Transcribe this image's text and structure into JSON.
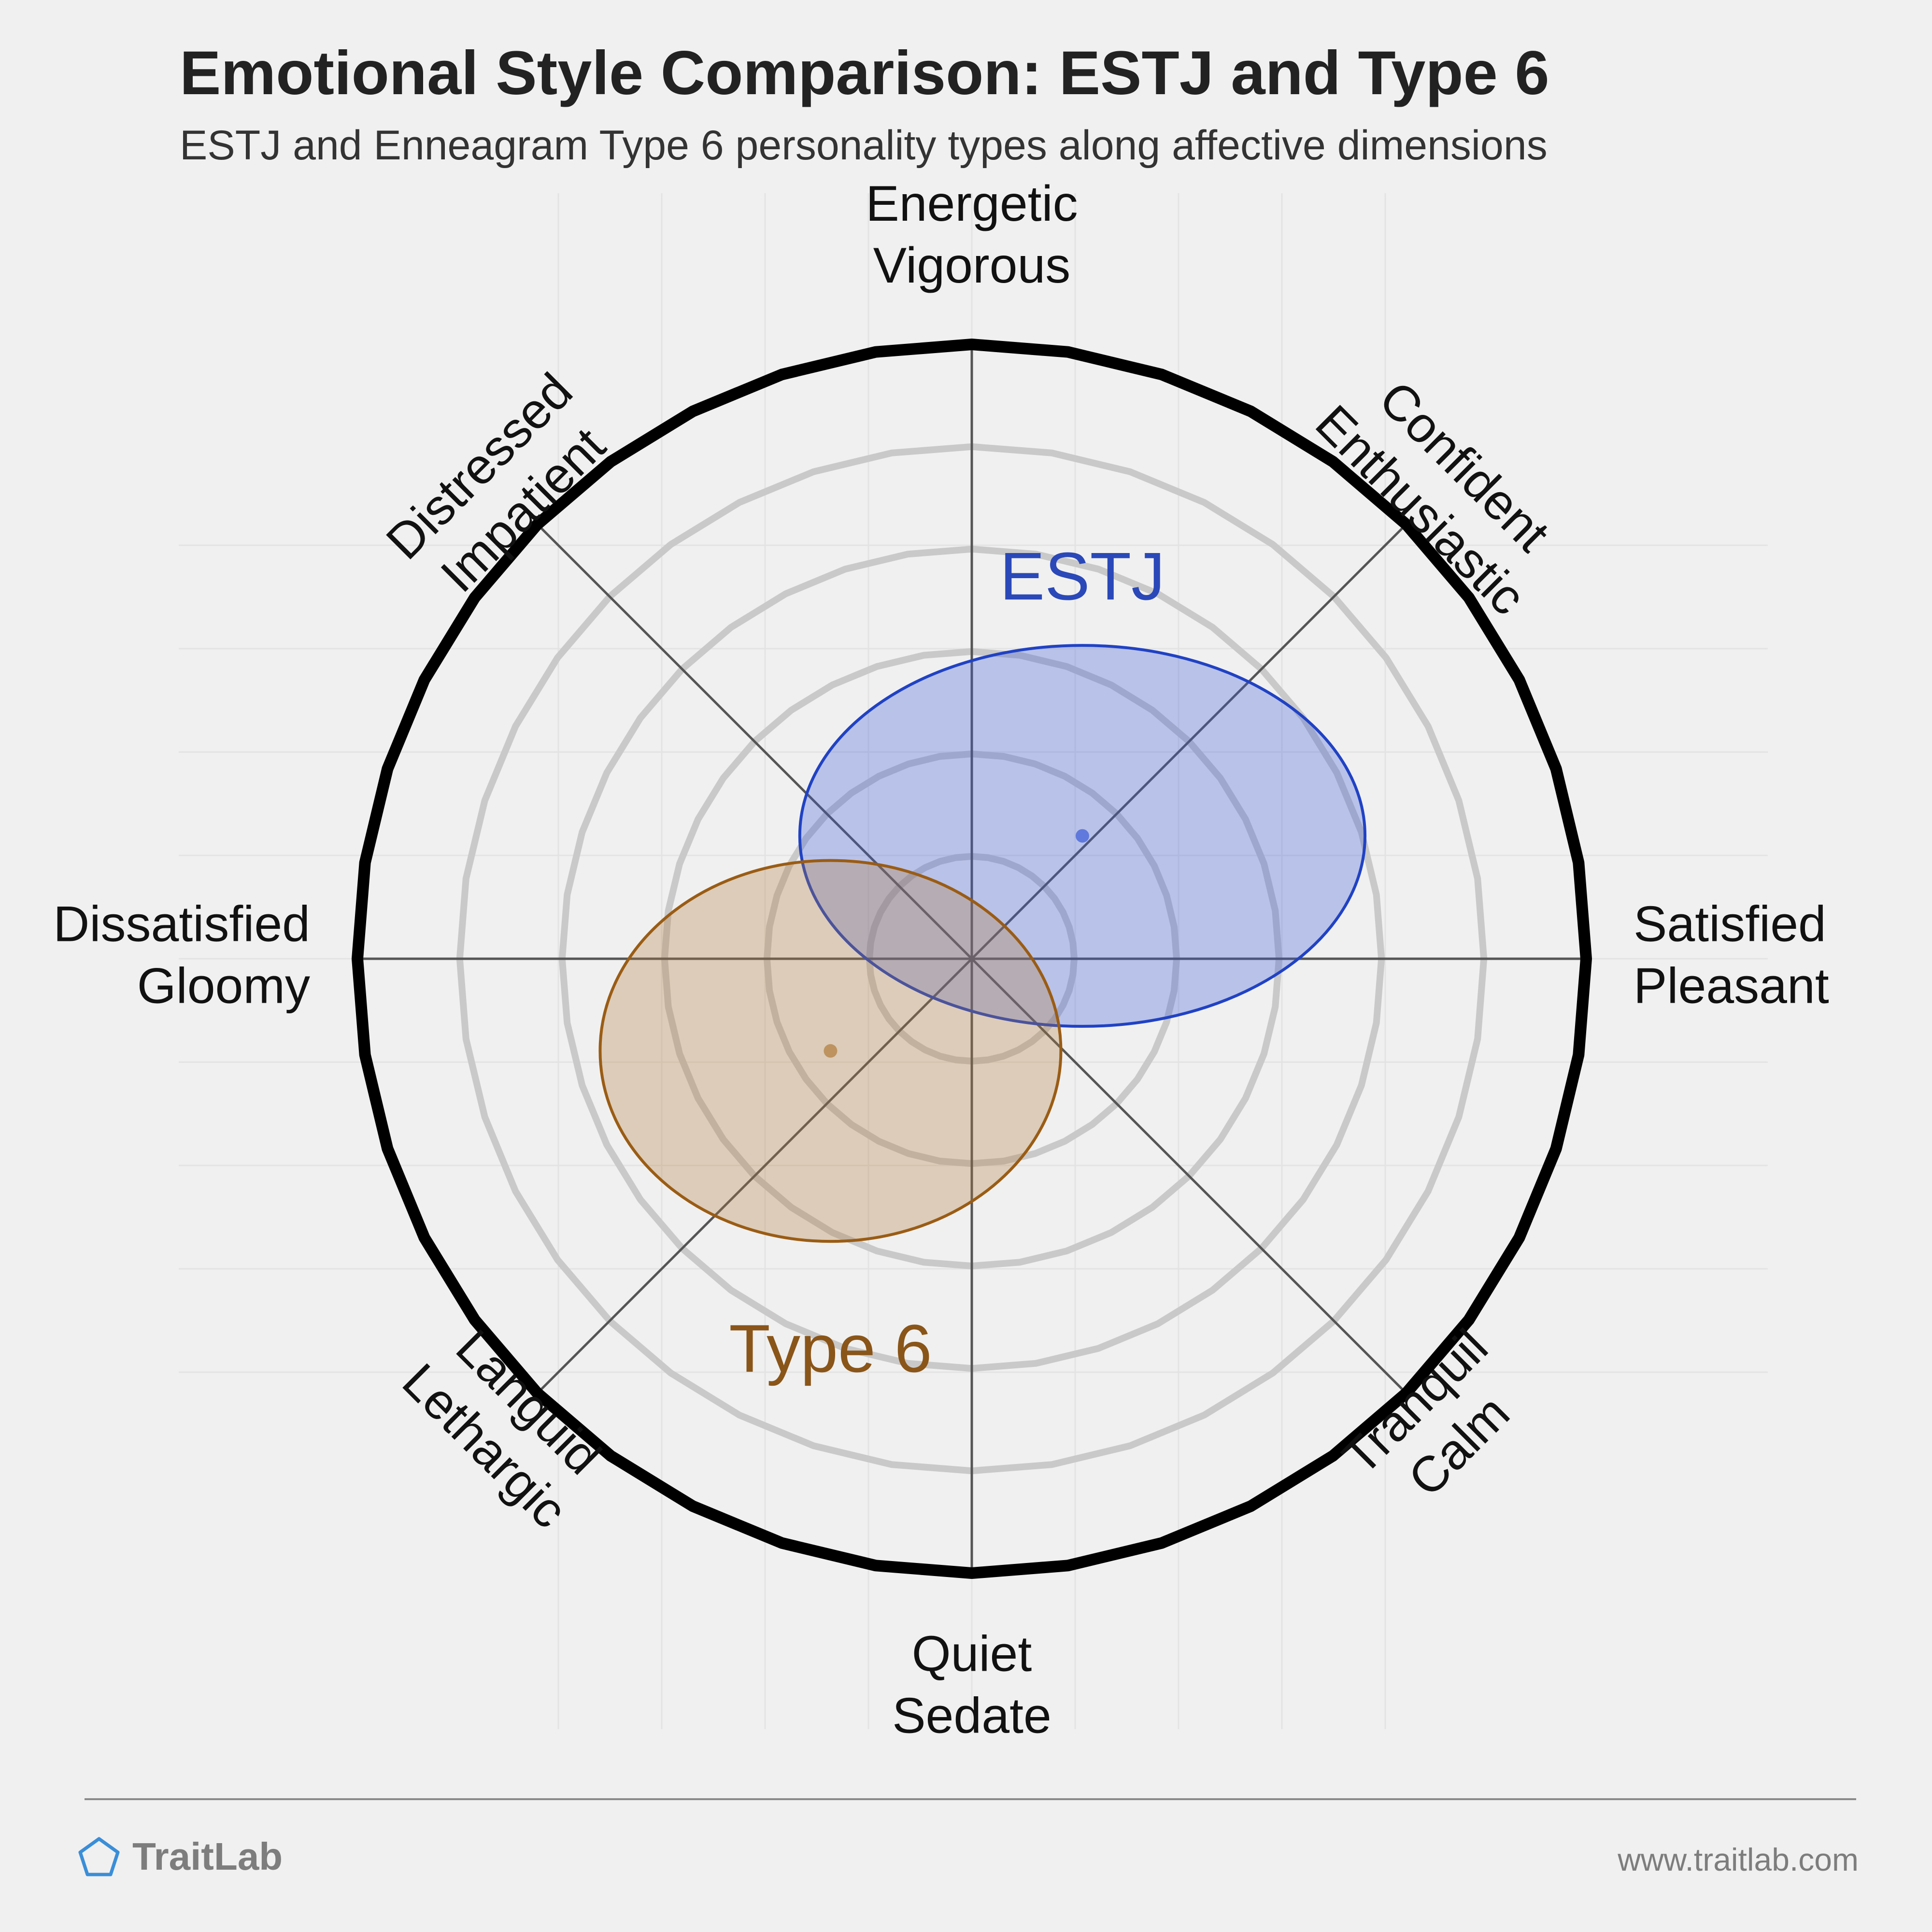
{
  "header": {
    "title": "Emotional Style Comparison: ESTJ and Type 6",
    "subtitle": "ESTJ and Enneagram Type 6 personality types along affective dimensions"
  },
  "footer": {
    "brand": "TraitLab",
    "url": "www.traitlab.com",
    "logo_icon": "pentagon-icon"
  },
  "chart_data": {
    "type": "scatter",
    "title": "Emotional Style Comparison: ESTJ and Type 6",
    "subtitle": "ESTJ and Enneagram Type 6 personality types along affective dimensions",
    "xlim": [
      -1,
      1
    ],
    "ylim": [
      -1,
      1
    ],
    "grid": true,
    "axes": [
      {
        "angle": 90,
        "lines": [
          "Energetic",
          "Vigorous"
        ]
      },
      {
        "angle": 45,
        "lines": [
          "Confident",
          "Enthusiastic"
        ]
      },
      {
        "angle": 0,
        "lines": [
          "Satisfied",
          "Pleasant"
        ]
      },
      {
        "angle": -45,
        "lines": [
          "Tranquil",
          "Calm"
        ]
      },
      {
        "angle": -90,
        "lines": [
          "Quiet",
          "Sedate"
        ]
      },
      {
        "angle": -135,
        "lines": [
          "Languid",
          "Lethargic"
        ]
      },
      {
        "angle": 180,
        "lines": [
          "Dissatisfied",
          "Gloomy"
        ]
      },
      {
        "angle": 135,
        "lines": [
          "Distressed",
          "Impatient"
        ]
      }
    ],
    "series": [
      {
        "name": "ESTJ",
        "x": 0.18,
        "y": 0.2,
        "rx": 0.46,
        "ry": 0.31,
        "fill": "#3a5ad8",
        "stroke": "#2042c4",
        "label_color": "#2a48b8"
      },
      {
        "name": "Type 6",
        "x": -0.23,
        "y": -0.15,
        "rx": 0.375,
        "ry": 0.31,
        "fill": "#b07a3a",
        "stroke": "#9a5c14",
        "label_color": "#8a5518"
      }
    ],
    "colors": {
      "background": "#f0f0f0",
      "rings": "#c9c9c9",
      "spokes": "#555555",
      "outer_ring": "#000000"
    }
  }
}
